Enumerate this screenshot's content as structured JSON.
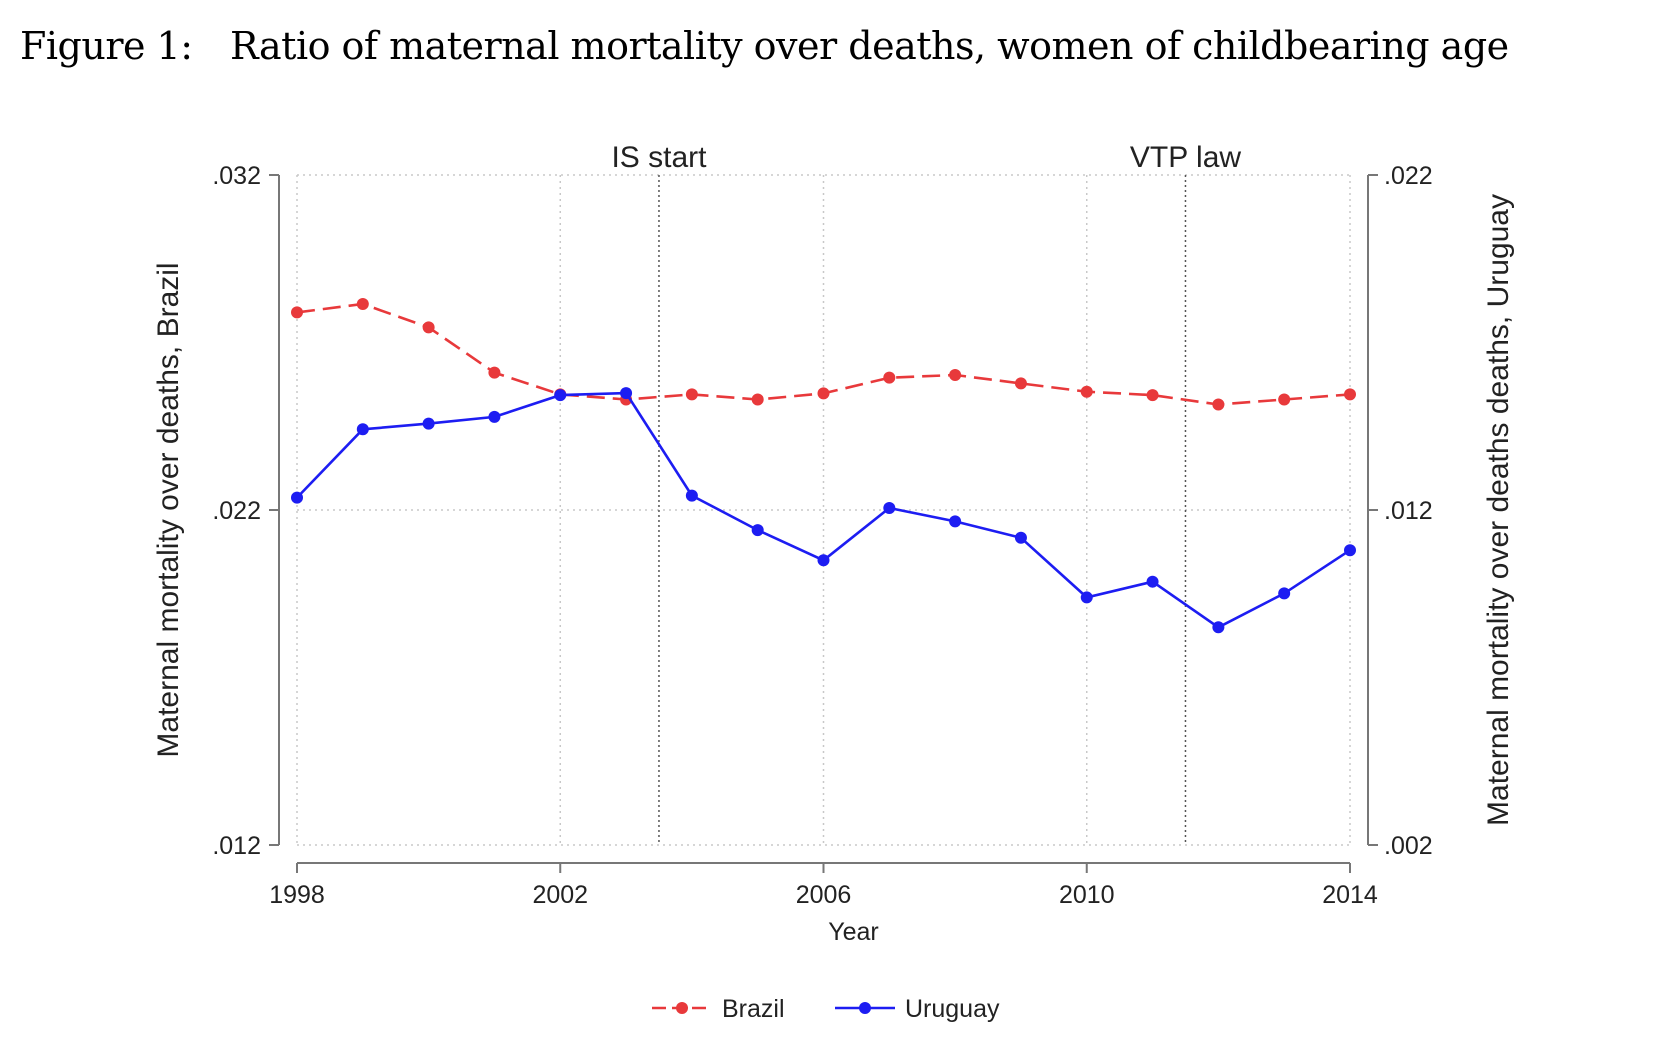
{
  "figure": {
    "title": "Figure 1: Ratio of maternal mortality over deaths, women of childbearing age"
  },
  "chart_data": {
    "type": "line",
    "x": [
      1998,
      1999,
      2000,
      2001,
      2002,
      2003,
      2004,
      2005,
      2006,
      2007,
      2008,
      2009,
      2010,
      2011,
      2012,
      2013,
      2014
    ],
    "xlabel": "Year",
    "xticks": [
      1998,
      2002,
      2006,
      2010,
      2014
    ],
    "xlim": [
      1998,
      2014
    ],
    "ylabel_left": "Maternal mortality over deaths, Brazil",
    "ylabel_right": "Maternal mortality over deaths deaths, Uruguay",
    "ylim_left": [
      0.012,
      0.032
    ],
    "ylim_right": [
      0.002,
      0.022
    ],
    "yticks_left": [
      ".012",
      ".022",
      ".032"
    ],
    "yticks_right": [
      ".002",
      ".012",
      ".022"
    ],
    "ytick_values_left": [
      0.012,
      0.022,
      0.032
    ],
    "ytick_values_right": [
      0.002,
      0.012,
      0.022
    ],
    "grid": true,
    "legend_position": "bottom",
    "annotations": [
      {
        "label": "IS start",
        "x": 2003.5
      },
      {
        "label": "VTP law",
        "x": 2011.5
      }
    ],
    "series": [
      {
        "name": "Brazil",
        "axis": "left",
        "color": "#e8393b",
        "style": "dashed",
        "values": [
          0.0279,
          0.02815,
          0.02745,
          0.0261,
          0.02545,
          0.0253,
          0.02545,
          0.0253,
          0.02548,
          0.02595,
          0.02603,
          0.02578,
          0.02553,
          0.02543,
          0.02515,
          0.0253,
          0.02545
        ]
      },
      {
        "name": "Uruguay",
        "axis": "right",
        "color": "#1d1df2",
        "style": "solid",
        "values": [
          0.01237,
          0.01441,
          0.01458,
          0.01478,
          0.01543,
          0.01549,
          0.01243,
          0.0114,
          0.0105,
          0.01206,
          0.01166,
          0.01117,
          0.00939,
          0.00986,
          0.0085,
          0.00951,
          0.0108
        ]
      }
    ]
  }
}
